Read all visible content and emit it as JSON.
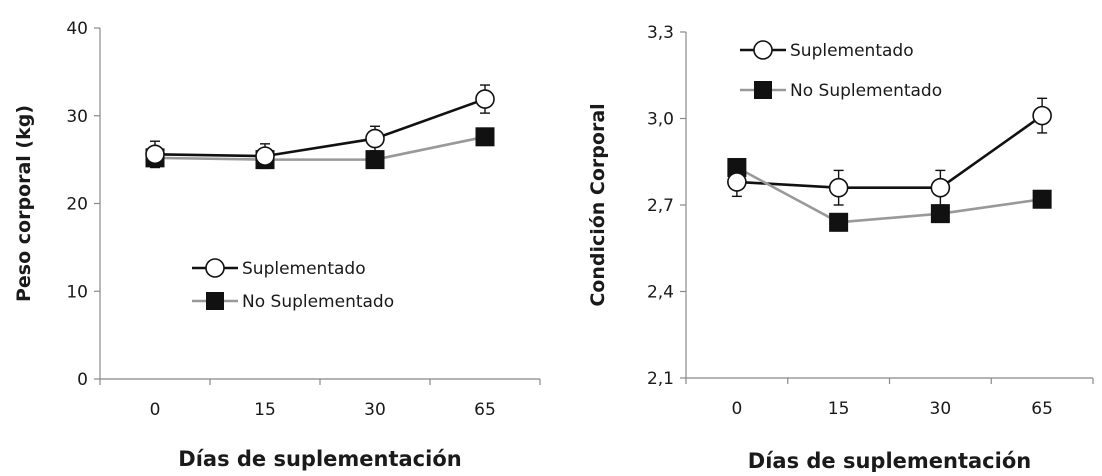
{
  "chart_data": [
    {
      "type": "line",
      "categories": [
        "0",
        "15",
        "30",
        "65"
      ],
      "xlabel": "Días de suplementación",
      "ylabel": "Peso corporal (kg)",
      "ylim": [
        0,
        40
      ],
      "yticks": [
        0,
        10,
        20,
        30,
        40
      ],
      "ytick_labels": [
        "0",
        "10",
        "20",
        "30",
        "40"
      ],
      "grid": false,
      "legend_position": "center",
      "series": [
        {
          "name": "Suplementado",
          "marker": "open-circle",
          "color": "#111111",
          "values": [
            25.6,
            25.4,
            27.4,
            31.9
          ],
          "error": [
            1.5,
            1.4,
            1.4,
            1.6
          ]
        },
        {
          "name": "No Suplementado",
          "marker": "filled-square",
          "color": "#999999",
          "values": [
            25.2,
            25.0,
            25.0,
            27.6
          ],
          "error": [
            0.8,
            0.8,
            0.8,
            0.8
          ]
        }
      ]
    },
    {
      "type": "line",
      "categories": [
        "0",
        "15",
        "30",
        "65"
      ],
      "xlabel": "Días de suplementación",
      "ylabel": "Condición Corporal",
      "ylim": [
        2.1,
        3.3
      ],
      "yticks": [
        2.1,
        2.4,
        2.7,
        3.0,
        3.3
      ],
      "ytick_labels": [
        "2,1",
        "2,4",
        "2,7",
        "3,0",
        "3,3"
      ],
      "grid": false,
      "legend_position": "top-left",
      "series": [
        {
          "name": "Suplementado",
          "marker": "open-circle",
          "color": "#111111",
          "values": [
            2.78,
            2.76,
            2.76,
            3.01
          ],
          "error": [
            0.05,
            0.06,
            0.06,
            0.06
          ]
        },
        {
          "name": "No Suplementado",
          "marker": "filled-square",
          "color": "#999999",
          "values": [
            2.83,
            2.64,
            2.67,
            2.72
          ],
          "error": [
            0.03,
            0.03,
            0.03,
            0.03
          ]
        }
      ]
    }
  ]
}
